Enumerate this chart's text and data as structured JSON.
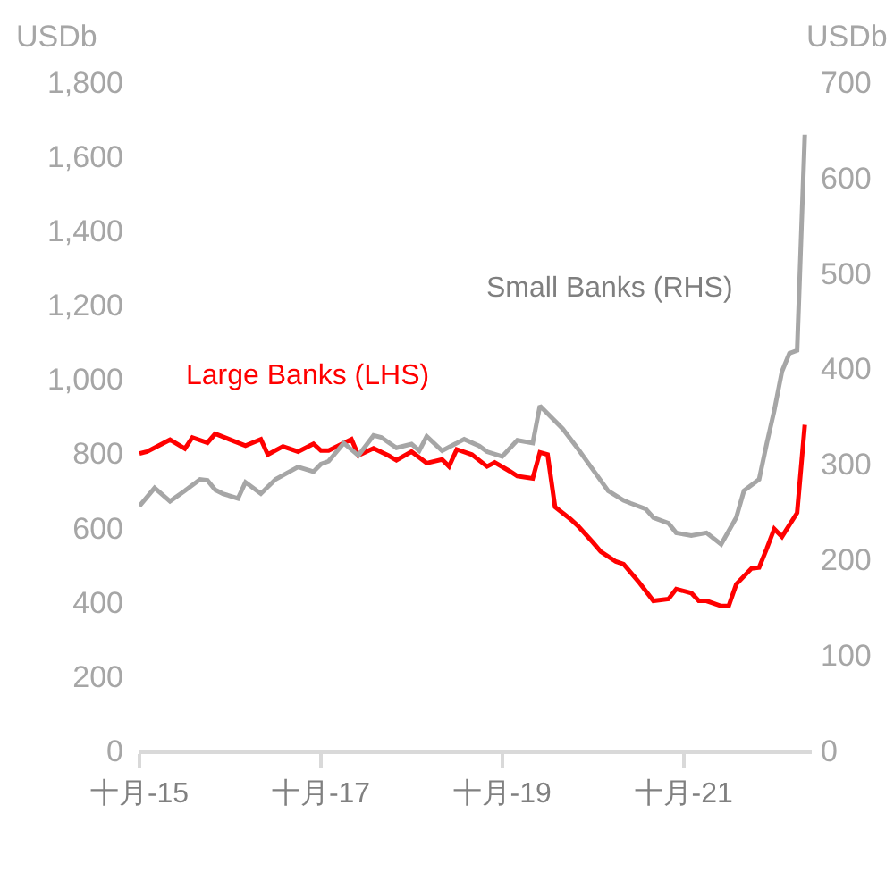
{
  "chart_data": {
    "type": "line",
    "ylabel": "USDb",
    "y2label": "USDb",
    "xlim": [
      "2015-10",
      "2023-03"
    ],
    "xticks": [
      {
        "value": "2015-10",
        "label": "十月-15"
      },
      {
        "value": "2017-10",
        "label": "十月-17"
      },
      {
        "value": "2019-10",
        "label": "十月-19"
      },
      {
        "value": "2021-10",
        "label": "十月-21"
      }
    ],
    "ylim": [
      0,
      1800
    ],
    "yticks": [
      0,
      200,
      400,
      600,
      800,
      {
        "value": 1000,
        "label": "1,000"
      },
      {
        "value": 1200,
        "label": "1,200"
      },
      {
        "value": 1400,
        "label": "1,400"
      },
      {
        "value": 1600,
        "label": "1,600"
      },
      {
        "value": 1800,
        "label": "1,800"
      }
    ],
    "y2lim": [
      0,
      700
    ],
    "y2ticks": [
      0,
      100,
      200,
      300,
      400,
      500,
      600,
      700
    ],
    "legend": false,
    "marker": "none",
    "line_style": "solid",
    "series": [
      {
        "name": "Large Banks (LHS)",
        "color": "#ff0000",
        "x": [
          "2015-10",
          "2015-11",
          "2016-02",
          "2016-04",
          "2016-05",
          "2016-07",
          "2016-08",
          "2016-12",
          "2017-02",
          "2017-03",
          "2017-05",
          "2017-07",
          "2017-09",
          "2017-10",
          "2017-11",
          "2018-02",
          "2018-03",
          "2018-05",
          "2018-07",
          "2018-08",
          "2018-10",
          "2018-12",
          "2019-02",
          "2019-03",
          "2019-04",
          "2019-06",
          "2019-08",
          "2019-09",
          "2019-11",
          "2019-12",
          "2020-02",
          "2020-03",
          "2020-04",
          "2020-05",
          "2020-07",
          "2020-08",
          "2020-10",
          "2020-11",
          "2021-01",
          "2021-02",
          "2021-04",
          "2021-06",
          "2021-08",
          "2021-09",
          "2021-11",
          "2021-12",
          "2022-01",
          "2022-03",
          "2022-04",
          "2022-05",
          "2022-07",
          "2022-08",
          "2022-09",
          "2022-10",
          "2022-11",
          "2023-01",
          "2023-02"
        ],
        "values": [
          800,
          805,
          837,
          813,
          843,
          829,
          853,
          821,
          838,
          797,
          819,
          805,
          826,
          808,
          808,
          838,
          795,
          814,
          794,
          782,
          805,
          774,
          784,
          765,
          811,
          797,
          765,
          776,
          752,
          739,
          733,
          803,
          797,
          656,
          624,
          605,
          560,
          536,
          509,
          502,
          456,
          403,
          408,
          435,
          424,
          403,
          403,
          389,
          390,
          448,
          490,
          493,
          544,
          597,
          576,
          640,
          877
        ]
      },
      {
        "name": "Small Banks (RHS)",
        "color": "#a6a6a6",
        "axis": "y2",
        "x": [
          "2015-10",
          "2015-12",
          "2016-02",
          "2016-04",
          "2016-06",
          "2016-07",
          "2016-08",
          "2016-09",
          "2016-11",
          "2016-12",
          "2017-02",
          "2017-04",
          "2017-07",
          "2017-09",
          "2017-10",
          "2017-11",
          "2018-01",
          "2018-03",
          "2018-05",
          "2018-06",
          "2018-08",
          "2018-10",
          "2018-11",
          "2018-12",
          "2019-02",
          "2019-05",
          "2019-07",
          "2019-08",
          "2019-10",
          "2019-12",
          "2020-02",
          "2020-03",
          "2020-06",
          "2020-08",
          "2020-10",
          "2020-12",
          "2021-02",
          "2021-03",
          "2021-05",
          "2021-06",
          "2021-08",
          "2021-09",
          "2021-11",
          "2022-01",
          "2022-03",
          "2022-05",
          "2022-06",
          "2022-08",
          "2022-09",
          "2022-10",
          "2022-11",
          "2022-12",
          "2023-01",
          "2023-02"
        ],
        "values": [
          256,
          275,
          261,
          272,
          284,
          283,
          273,
          269,
          264,
          281,
          269,
          284,
          297,
          292,
          300,
          303,
          322,
          309,
          330,
          328,
          317,
          321,
          314,
          329,
          314,
          326,
          319,
          313,
          308,
          325,
          322,
          361,
          337,
          316,
          294,
          272,
          262,
          259,
          253,
          244,
          238,
          228,
          225,
          228,
          216,
          244,
          272,
          284,
          322,
          356,
          397,
          416,
          419,
          645
        ]
      }
    ]
  }
}
